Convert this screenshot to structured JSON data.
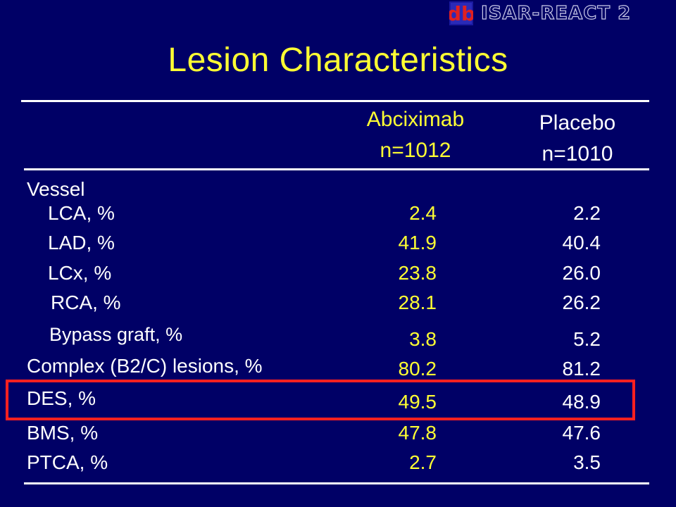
{
  "header": {
    "logo_text": "db",
    "study_name": "ISAR-REACT 2"
  },
  "title": "Lesion Characteristics",
  "columns": {
    "abciximab": {
      "name": "Abciximab",
      "n": "n=1012"
    },
    "placebo": {
      "name": "Placebo",
      "n": "n=1010"
    }
  },
  "section_label": "Vessel",
  "rows": [
    {
      "label": "LCA, %",
      "abciximab": "2.4",
      "placebo": "2.2"
    },
    {
      "label": "LAD, %",
      "abciximab": "41.9",
      "placebo": "40.4"
    },
    {
      "label": "LCx, %",
      "abciximab": "23.8",
      "placebo": "26.0"
    },
    {
      "label": "RCA, %",
      "abciximab": "28.1",
      "placebo": "26.2"
    },
    {
      "label": "Bypass graft, %",
      "abciximab": "3.8",
      "placebo": "5.2"
    },
    {
      "label": "Complex (B2/C) lesions, %",
      "abciximab": "80.2",
      "placebo": "81.2"
    },
    {
      "label": "DES, %",
      "abciximab": "49.5",
      "placebo": "48.9",
      "highlighted": true
    },
    {
      "label": "BMS, %",
      "abciximab": "47.8",
      "placebo": "47.6"
    },
    {
      "label": "PTCA, %",
      "abciximab": "2.7",
      "placebo": "3.5"
    }
  ],
  "colors": {
    "background": "#000066",
    "title": "#ffff33",
    "abciximab_values": "#ffff33",
    "placebo_values": "#ffffff",
    "highlight_border": "#ff2020"
  }
}
